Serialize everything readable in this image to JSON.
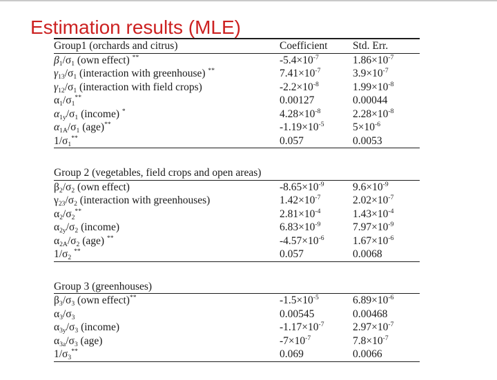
{
  "slide": {
    "title": "Estimation results (MLE)"
  },
  "colors": {
    "title_red": "#cc2121",
    "text": "#1a1a1a",
    "rule": "#1c1c1c",
    "background": "#ffffff"
  },
  "table": {
    "columns": [
      "Coefficient",
      "Std. Err."
    ],
    "groups": [
      {
        "title": "Group1 (orchards and citrus)",
        "show_column_headers": true,
        "rows": [
          {
            "label": "~β~_1_/σ_1_ (own effect) ^**^",
            "coefficient": "-5.4×10^-7^",
            "std_err": "1.86×10^-7^"
          },
          {
            "label": "~γ~_13_/σ_1_ (interaction with greenhouse) ^**^",
            "coefficient": "7.41×10^-7^",
            "std_err": "3.9×10^-7^"
          },
          {
            "label": "~γ~_12_/σ_1_ (interaction with field crops)",
            "coefficient": "-2.2×10^-8^",
            "std_err": "1.99×10^-8^"
          },
          {
            "label": "α_1_/σ_1_^**^",
            "coefficient": "0.00127",
            "std_err": "0.00044"
          },
          {
            "label": "~α~_1y_/σ_1_ (income) ^*^",
            "coefficient": "4.28×10^-8^",
            "std_err": "2.28×10^-8^"
          },
          {
            "label": "~α~_1A_/σ_1_ (age)^**^",
            "coefficient": "-1.19×10^-5^",
            "std_err": "5×10^-6^"
          },
          {
            "label": "1/σ_1_^**^",
            "coefficient": "0.057",
            "std_err": "0.0053"
          }
        ]
      },
      {
        "title": "Group 2 (vegetables, field crops and open areas)",
        "show_column_headers": false,
        "rows": [
          {
            "label": "β_2_/σ_2_ (own effect)",
            "coefficient": "-8.65×10^-9^",
            "std_err": "9.6×10^-9^"
          },
          {
            "label": "γ_23_/σ_2_ (interaction with greenhouses)",
            "coefficient": "1.42×10^-7^",
            "std_err": "2.02×10^-7^"
          },
          {
            "label": "α_2_/σ_2_^**^",
            "coefficient": "2.81×10^-4^",
            "std_err": "1.43×10^-4^"
          },
          {
            "label": "α_2y_/σ_2_ (income)",
            "coefficient": "6.83×10^-9^",
            "std_err": "7.97×10^-9^"
          },
          {
            "label": "α_2A_/σ_2_ (age) ^**^",
            "coefficient": "-4.57×10^-6^",
            "std_err": "1.67×10^-6^"
          },
          {
            "label": "1/σ_2_ ^**^",
            "coefficient": "0.057",
            "std_err": "0.0068"
          }
        ]
      },
      {
        "title": "Group 3 (greenhouses)",
        "show_column_headers": false,
        "rows": [
          {
            "label": "β_3_/σ_3_ (own effect)^**^",
            "coefficient": "-1.5×10^-5^",
            "std_err": "6.89×10^-6^"
          },
          {
            "label": "α_3_/σ_3_",
            "coefficient": "0.00545",
            "std_err": "0.00468"
          },
          {
            "label": "α_3y_/σ_3_ (income)",
            "coefficient": "-1.17×10^-7^",
            "std_err": "2.97×10^-7^"
          },
          {
            "label": "α_3a_/σ_3_ (age)",
            "coefficient": "-7×10^-7^",
            "std_err": "7.8×10^-7^"
          },
          {
            "label": "1/σ_3_^**^",
            "coefficient": "0.069",
            "std_err": "0.0066"
          }
        ]
      }
    ]
  }
}
